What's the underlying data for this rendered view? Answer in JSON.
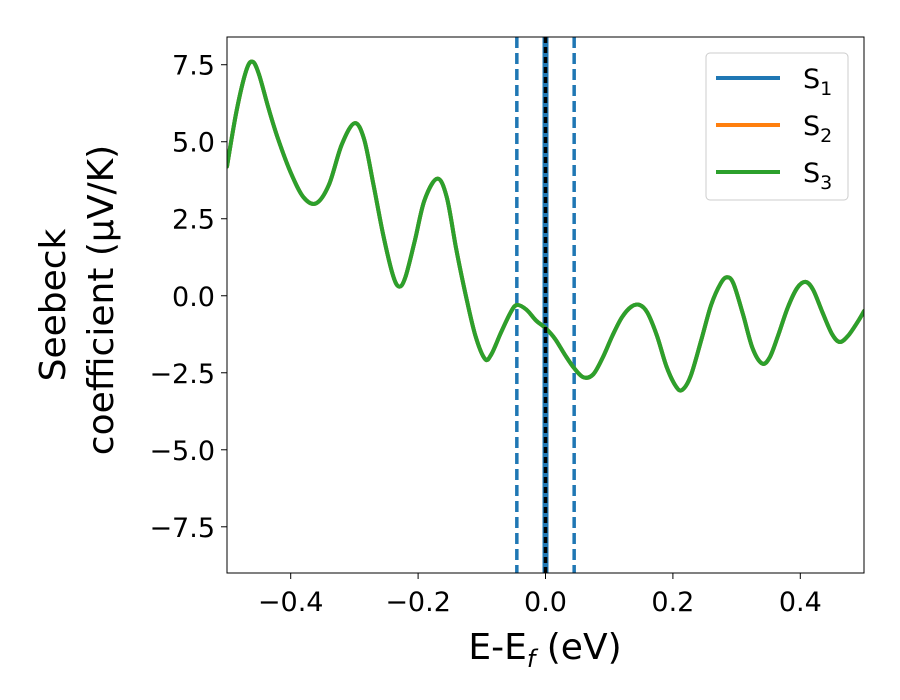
{
  "chart_data": {
    "type": "line",
    "xlabel": "E-E",
    "xlabel_sub": "f",
    "xlabel_tail": " (eV)",
    "ylabel_line1": "Seebeck",
    "ylabel_line2": "coefficient  (μV/K)",
    "xlim": [
      -0.5,
      0.5
    ],
    "ylim": [
      -9.0,
      8.4
    ],
    "xticks": [
      -0.4,
      -0.2,
      0.0,
      0.2,
      0.4
    ],
    "xtick_labels": [
      "−0.4",
      "−0.2",
      "0.0",
      "0.2",
      "0.4"
    ],
    "yticks": [
      -7.5,
      -5.0,
      -2.5,
      0.0,
      2.5,
      5.0,
      7.5
    ],
    "ytick_labels": [
      "−7.5",
      "−5.0",
      "−2.5",
      "0.0",
      "2.5",
      "5.0",
      "7.5"
    ],
    "grid": false,
    "legend_position": "top-right",
    "series": [
      {
        "name": "S",
        "sub": "1",
        "color": "#1f77b4"
      },
      {
        "name": "S",
        "sub": "2",
        "color": "#ff7f0e"
      },
      {
        "name": "S",
        "sub": "3",
        "color": "#2ca02c"
      }
    ],
    "curve_points": [
      [
        -0.5,
        4.2
      ],
      [
        -0.485,
        6.0
      ],
      [
        -0.47,
        7.3
      ],
      [
        -0.46,
        7.6
      ],
      [
        -0.45,
        7.2
      ],
      [
        -0.435,
        6.1
      ],
      [
        -0.42,
        5.1
      ],
      [
        -0.4,
        4.0
      ],
      [
        -0.38,
        3.2
      ],
      [
        -0.36,
        3.0
      ],
      [
        -0.34,
        3.6
      ],
      [
        -0.32,
        4.9
      ],
      [
        -0.3,
        5.6
      ],
      [
        -0.285,
        5.1
      ],
      [
        -0.27,
        3.6
      ],
      [
        -0.255,
        2.0
      ],
      [
        -0.24,
        0.7
      ],
      [
        -0.23,
        0.3
      ],
      [
        -0.22,
        0.6
      ],
      [
        -0.205,
        1.8
      ],
      [
        -0.19,
        3.1
      ],
      [
        -0.17,
        3.8
      ],
      [
        -0.155,
        3.2
      ],
      [
        -0.14,
        1.5
      ],
      [
        -0.125,
        0.0
      ],
      [
        -0.11,
        -1.3
      ],
      [
        -0.095,
        -2.05
      ],
      [
        -0.085,
        -1.9
      ],
      [
        -0.07,
        -1.2
      ],
      [
        -0.055,
        -0.55
      ],
      [
        -0.045,
        -0.3
      ],
      [
        -0.03,
        -0.45
      ],
      [
        -0.015,
        -0.8
      ],
      [
        0.0,
        -1.05
      ],
      [
        0.015,
        -1.4
      ],
      [
        0.03,
        -1.9
      ],
      [
        0.045,
        -2.35
      ],
      [
        0.06,
        -2.65
      ],
      [
        0.075,
        -2.55
      ],
      [
        0.09,
        -2.0
      ],
      [
        0.105,
        -1.3
      ],
      [
        0.12,
        -0.7
      ],
      [
        0.135,
        -0.35
      ],
      [
        0.148,
        -0.3
      ],
      [
        0.16,
        -0.55
      ],
      [
        0.175,
        -1.3
      ],
      [
        0.19,
        -2.3
      ],
      [
        0.205,
        -2.95
      ],
      [
        0.215,
        -3.05
      ],
      [
        0.228,
        -2.6
      ],
      [
        0.245,
        -1.4
      ],
      [
        0.26,
        -0.3
      ],
      [
        0.275,
        0.4
      ],
      [
        0.285,
        0.6
      ],
      [
        0.295,
        0.4
      ],
      [
        0.31,
        -0.6
      ],
      [
        0.325,
        -1.7
      ],
      [
        0.34,
        -2.2
      ],
      [
        0.352,
        -2.0
      ],
      [
        0.365,
        -1.3
      ],
      [
        0.38,
        -0.4
      ],
      [
        0.395,
        0.25
      ],
      [
        0.408,
        0.45
      ],
      [
        0.42,
        0.2
      ],
      [
        0.435,
        -0.55
      ],
      [
        0.45,
        -1.25
      ],
      [
        0.462,
        -1.5
      ],
      [
        0.475,
        -1.3
      ],
      [
        0.49,
        -0.85
      ],
      [
        0.5,
        -0.5
      ]
    ],
    "vertical_lines": [
      {
        "x": -0.045,
        "style": "dashed",
        "color": "#1f77b4"
      },
      {
        "x": 0.045,
        "style": "dashed",
        "color": "#1f77b4"
      },
      {
        "x": 0.0,
        "style": "solid",
        "color": "#1f77b4"
      },
      {
        "x": 0.0,
        "style": "dashed",
        "color": "#000000"
      }
    ]
  }
}
